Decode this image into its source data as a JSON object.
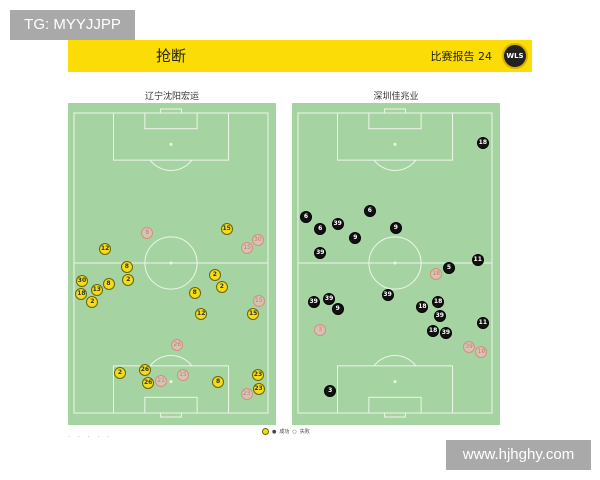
{
  "overlay_label": "TG: MYYJJPP",
  "watermark": "www.hjhghy.com",
  "header": {
    "title": "抢断",
    "report": "比赛报告 24",
    "logo_text": "WLS"
  },
  "footer_dots": "· · · · ·",
  "legend": {
    "success": "成功",
    "fail": "失败",
    "success_symbol": "●",
    "fail_symbol": "○"
  },
  "colors": {
    "header": "#fbdc06",
    "pitch": "#a6d3a2",
    "home_success": "#f2dc1c",
    "away_success": "#111111",
    "fail": "#d5c4b6"
  },
  "pitch_units": "meters, x across width 0-68, y along length 0-105 from top",
  "teams": [
    {
      "name": "辽宁沈阳宏运",
      "markers": [
        {
          "n": "8",
          "ok": false,
          "x": 25.7,
          "y": 41.9
        },
        {
          "n": "15",
          "ok": true,
          "x": 53.5,
          "y": 40.7
        },
        {
          "n": "12",
          "ok": true,
          "x": 10.9,
          "y": 47.5
        },
        {
          "n": "15",
          "ok": false,
          "x": 61.1,
          "y": 46.8
        },
        {
          "n": "30",
          "ok": false,
          "x": 64.0,
          "y": 44.7
        },
        {
          "n": "8",
          "ok": true,
          "x": 18.7,
          "y": 55.2
        },
        {
          "n": "2",
          "ok": true,
          "x": 18.9,
          "y": 56.9
        },
        {
          "n": "30",
          "ok": true,
          "x": 2.8,
          "y": 60.2
        },
        {
          "n": "18",
          "ok": true,
          "x": 2.8,
          "y": 62.3
        },
        {
          "n": "13",
          "ok": true,
          "x": 8.0,
          "y": 62.7
        },
        {
          "n": "2",
          "ok": true,
          "x": 6.7,
          "y": 65.0
        },
        {
          "n": "8",
          "ok": true,
          "x": 11.6,
          "y": 60.1
        },
        {
          "n": "2",
          "ok": true,
          "x": 49.4,
          "y": 56.9
        },
        {
          "n": "2",
          "ok": true,
          "x": 51.8,
          "y": 60.7
        },
        {
          "n": "8",
          "ok": true,
          "x": 42.3,
          "y": 62.9
        },
        {
          "n": "12",
          "ok": true,
          "x": 44.6,
          "y": 70.2
        },
        {
          "n": "15",
          "ok": false,
          "x": 64.8,
          "y": 65.9
        },
        {
          "n": "15",
          "ok": true,
          "x": 62.8,
          "y": 70.5
        },
        {
          "n": "26",
          "ok": false,
          "x": 36.2,
          "y": 81.2
        },
        {
          "n": "2",
          "ok": true,
          "x": 16.1,
          "y": 90.9
        },
        {
          "n": "26",
          "ok": true,
          "x": 25.7,
          "y": 92.9
        },
        {
          "n": "26",
          "ok": true,
          "x": 25.3,
          "y": 91.5
        },
        {
          "n": "21",
          "ok": false,
          "x": 30.4,
          "y": 93.8
        },
        {
          "n": "15",
          "ok": false,
          "x": 38.2,
          "y": 91.7
        },
        {
          "n": "8",
          "ok": true,
          "x": 50.5,
          "y": 94.2
        },
        {
          "n": "23",
          "ok": true,
          "x": 64.5,
          "y": 93.5
        },
        {
          "n": "23",
          "ok": true,
          "x": 64.5,
          "y": 94.9
        },
        {
          "n": "23",
          "ok": false,
          "x": 60.7,
          "y": 98.3
        }
      ]
    },
    {
      "name": "深圳佳兆业",
      "markers": [
        {
          "n": "18",
          "ok": true,
          "x": 64.8,
          "y": 10.6
        },
        {
          "n": "6",
          "ok": true,
          "x": 2.8,
          "y": 36.5
        },
        {
          "n": "6",
          "ok": true,
          "x": 25.2,
          "y": 34.2
        },
        {
          "n": "6",
          "ok": true,
          "x": 7.8,
          "y": 40.6
        },
        {
          "n": "39",
          "ok": true,
          "x": 13.9,
          "y": 38.7
        },
        {
          "n": "9",
          "ok": true,
          "x": 20.1,
          "y": 43.6
        },
        {
          "n": "9",
          "ok": true,
          "x": 34.3,
          "y": 40.4
        },
        {
          "n": "39",
          "ok": true,
          "x": 7.8,
          "y": 49.1
        },
        {
          "n": "11",
          "ok": true,
          "x": 63.0,
          "y": 51.3
        },
        {
          "n": "5",
          "ok": true,
          "x": 52.9,
          "y": 54.3
        },
        {
          "n": "18",
          "ok": false,
          "x": 48.4,
          "y": 56.2
        },
        {
          "n": "39",
          "ok": true,
          "x": 31.4,
          "y": 63.7
        },
        {
          "n": "39",
          "ok": true,
          "x": 5.5,
          "y": 66.3
        },
        {
          "n": "39",
          "ok": true,
          "x": 11.1,
          "y": 65.3
        },
        {
          "n": "9",
          "ok": true,
          "x": 13.7,
          "y": 68.3
        },
        {
          "n": "18",
          "ok": true,
          "x": 43.6,
          "y": 67.9
        },
        {
          "n": "18",
          "ok": true,
          "x": 49.1,
          "y": 66.3
        },
        {
          "n": "39",
          "ok": true,
          "x": 49.7,
          "y": 71.2
        },
        {
          "n": "11",
          "ok": true,
          "x": 64.8,
          "y": 73.4
        },
        {
          "n": "3",
          "ok": false,
          "x": 7.8,
          "y": 76.0
        },
        {
          "n": "18",
          "ok": true,
          "x": 48.1,
          "y": 76.3
        },
        {
          "n": "39",
          "ok": true,
          "x": 51.1,
          "y": 76.9
        },
        {
          "n": "39",
          "ok": false,
          "x": 60.0,
          "y": 82.1
        },
        {
          "n": "18",
          "ok": false,
          "x": 64.2,
          "y": 83.5
        },
        {
          "n": "3",
          "ok": true,
          "x": 11.3,
          "y": 97.4
        }
      ]
    }
  ]
}
